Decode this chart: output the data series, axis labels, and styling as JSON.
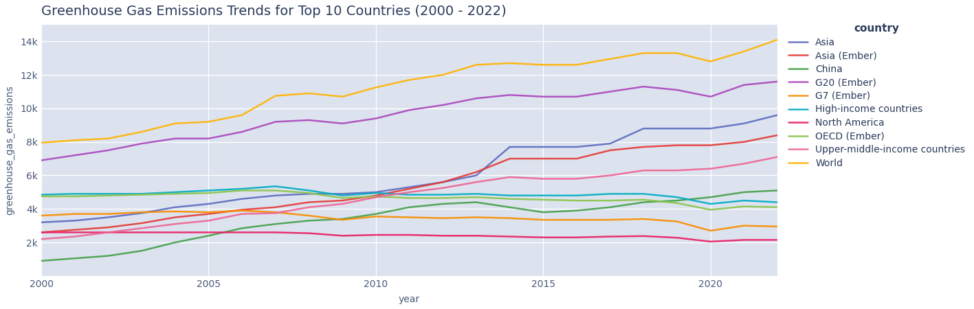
{
  "title": "Greenhouse Gas Emissions Trends for Top 10 Countries (2000 - 2022)",
  "xlabel": "year",
  "ylabel": "greenhouse_gas_emissions",
  "legend_title": "country",
  "background_color": "#dce3ef",
  "fig_background": "#ffffff",
  "series": {
    "Asia": {
      "color": "#5c6bc0",
      "years": [
        2000,
        2001,
        2002,
        2003,
        2004,
        2005,
        2006,
        2007,
        2008,
        2009,
        2010,
        2011,
        2012,
        2013,
        2014,
        2015,
        2016,
        2017,
        2018,
        2019,
        2020,
        2021,
        2022
      ],
      "values": [
        3200,
        3300,
        3500,
        3750,
        4100,
        4300,
        4600,
        4800,
        4900,
        4900,
        5000,
        5300,
        5600,
        6000,
        7700,
        7700,
        7700,
        7900,
        8800,
        8800,
        8800,
        9100,
        9600
      ]
    },
    "Asia (Ember)": {
      "color": "#e53935",
      "years": [
        2000,
        2001,
        2002,
        2003,
        2004,
        2005,
        2006,
        2007,
        2008,
        2009,
        2010,
        2011,
        2012,
        2013,
        2014,
        2015,
        2016,
        2017,
        2018,
        2019,
        2020,
        2021,
        2022
      ],
      "values": [
        2600,
        2750,
        2900,
        3150,
        3500,
        3700,
        3950,
        4100,
        4400,
        4500,
        4800,
        5200,
        5600,
        6200,
        7000,
        7000,
        7000,
        7500,
        7700,
        7800,
        7800,
        8000,
        8400
      ]
    },
    "China": {
      "color": "#43a047",
      "years": [
        2000,
        2001,
        2002,
        2003,
        2004,
        2005,
        2006,
        2007,
        2008,
        2009,
        2010,
        2011,
        2012,
        2013,
        2014,
        2015,
        2016,
        2017,
        2018,
        2019,
        2020,
        2021,
        2022
      ],
      "values": [
        900,
        1050,
        1200,
        1500,
        2000,
        2400,
        2850,
        3100,
        3300,
        3400,
        3700,
        4100,
        4300,
        4400,
        4100,
        3800,
        3900,
        4100,
        4400,
        4500,
        4700,
        5000,
        5100
      ]
    },
    "G20 (Ember)": {
      "color": "#ab47bc",
      "years": [
        2000,
        2001,
        2002,
        2003,
        2004,
        2005,
        2006,
        2007,
        2008,
        2009,
        2010,
        2011,
        2012,
        2013,
        2014,
        2015,
        2016,
        2017,
        2018,
        2019,
        2020,
        2021,
        2022
      ],
      "values": [
        6900,
        7200,
        7500,
        7900,
        8200,
        8200,
        8600,
        9200,
        9300,
        9100,
        9400,
        9900,
        10200,
        10600,
        10800,
        10700,
        10700,
        11000,
        11300,
        11100,
        10700,
        11400,
        11600
      ]
    },
    "G7 (Ember)": {
      "color": "#fb8c00",
      "years": [
        2000,
        2001,
        2002,
        2003,
        2004,
        2005,
        2006,
        2007,
        2008,
        2009,
        2010,
        2011,
        2012,
        2013,
        2014,
        2015,
        2016,
        2017,
        2018,
        2019,
        2020,
        2021,
        2022
      ],
      "values": [
        3600,
        3700,
        3700,
        3800,
        3850,
        3800,
        3900,
        3800,
        3600,
        3350,
        3550,
        3500,
        3450,
        3500,
        3450,
        3350,
        3350,
        3350,
        3400,
        3250,
        2700,
        3000,
        2950
      ]
    },
    "High-income countries": {
      "color": "#00acc1",
      "years": [
        2000,
        2001,
        2002,
        2003,
        2004,
        2005,
        2006,
        2007,
        2008,
        2009,
        2010,
        2011,
        2012,
        2013,
        2014,
        2015,
        2016,
        2017,
        2018,
        2019,
        2020,
        2021,
        2022
      ],
      "values": [
        4850,
        4900,
        4900,
        4900,
        5000,
        5100,
        5200,
        5350,
        5100,
        4800,
        4950,
        4850,
        4850,
        4900,
        4800,
        4800,
        4800,
        4900,
        4900,
        4700,
        4300,
        4500,
        4400
      ]
    },
    "North America": {
      "color": "#e91e63",
      "years": [
        2000,
        2001,
        2002,
        2003,
        2004,
        2005,
        2006,
        2007,
        2008,
        2009,
        2010,
        2011,
        2012,
        2013,
        2014,
        2015,
        2016,
        2017,
        2018,
        2019,
        2020,
        2021,
        2022
      ],
      "values": [
        2600,
        2600,
        2600,
        2600,
        2600,
        2600,
        2600,
        2600,
        2550,
        2400,
        2450,
        2450,
        2400,
        2400,
        2350,
        2300,
        2300,
        2350,
        2380,
        2280,
        2050,
        2150,
        2150
      ]
    },
    "OECD (Ember)": {
      "color": "#8bc34a",
      "years": [
        2000,
        2001,
        2002,
        2003,
        2004,
        2005,
        2006,
        2007,
        2008,
        2009,
        2010,
        2011,
        2012,
        2013,
        2014,
        2015,
        2016,
        2017,
        2018,
        2019,
        2020,
        2021,
        2022
      ],
      "values": [
        4750,
        4750,
        4800,
        4850,
        4900,
        4950,
        5100,
        5100,
        4950,
        4650,
        4750,
        4650,
        4650,
        4700,
        4600,
        4550,
        4500,
        4500,
        4550,
        4350,
        3950,
        4150,
        4100
      ]
    },
    "Upper-middle-income countries": {
      "color": "#f06292",
      "years": [
        2000,
        2001,
        2002,
        2003,
        2004,
        2005,
        2006,
        2007,
        2008,
        2009,
        2010,
        2011,
        2012,
        2013,
        2014,
        2015,
        2016,
        2017,
        2018,
        2019,
        2020,
        2021,
        2022
      ],
      "values": [
        2200,
        2350,
        2600,
        2850,
        3100,
        3300,
        3700,
        3750,
        4100,
        4300,
        4700,
        5000,
        5250,
        5600,
        5900,
        5800,
        5800,
        6000,
        6300,
        6300,
        6400,
        6700,
        7100
      ]
    },
    "World": {
      "color": "#ffb300",
      "years": [
        2000,
        2001,
        2002,
        2003,
        2004,
        2005,
        2006,
        2007,
        2008,
        2009,
        2010,
        2011,
        2012,
        2013,
        2014,
        2015,
        2016,
        2017,
        2018,
        2019,
        2020,
        2021,
        2022
      ],
      "values": [
        7950,
        8100,
        8200,
        8600,
        9100,
        9200,
        9600,
        10750,
        10900,
        10700,
        11250,
        11700,
        12000,
        12600,
        12700,
        12600,
        12600,
        12950,
        13300,
        13300,
        12800,
        13400,
        14100
      ]
    }
  },
  "ylim": [
    0,
    15000
  ],
  "xlim": [
    2000,
    2022
  ],
  "yticks": [
    2000,
    4000,
    6000,
    8000,
    10000,
    12000,
    14000
  ],
  "ytick_labels": [
    "2k",
    "4k",
    "6k",
    "8k",
    "10k",
    "12k",
    "14k"
  ],
  "xticks": [
    2000,
    2005,
    2010,
    2015,
    2020
  ],
  "title_fontsize": 14,
  "label_fontsize": 10,
  "tick_fontsize": 10,
  "legend_fontsize": 10,
  "line_width": 1.8,
  "legend_order": [
    "Asia",
    "Asia (Ember)",
    "China",
    "G20 (Ember)",
    "G7 (Ember)",
    "High-income countries",
    "North America",
    "OECD (Ember)",
    "Upper-middle-income countries",
    "World"
  ]
}
